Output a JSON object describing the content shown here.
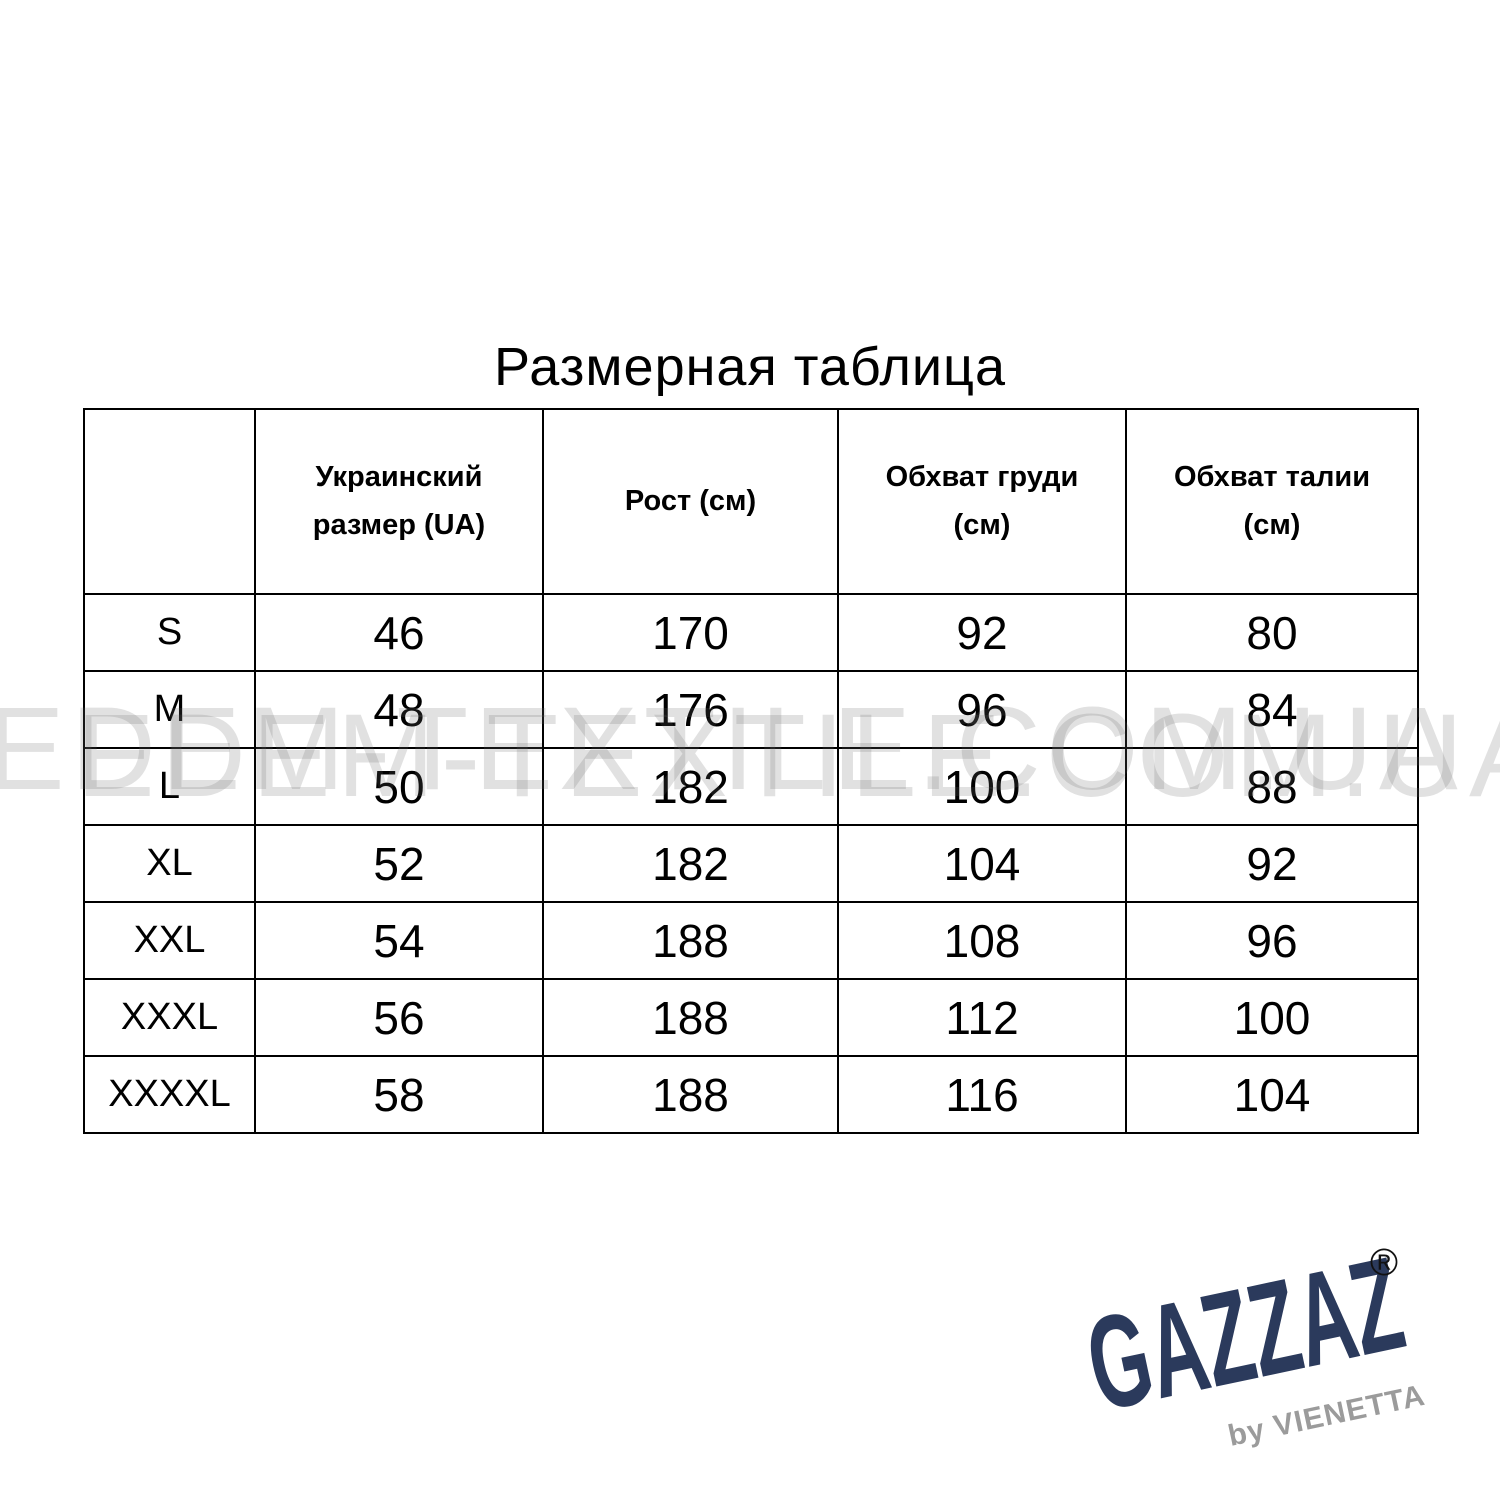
{
  "page": {
    "title": "Размерная таблица",
    "watermark": "EDEM-TEXTILE.COM.UA"
  },
  "table": {
    "columns": [
      "",
      "Украинский размер (UA)",
      "Рост (см)",
      "Обхват груди (см)",
      "Обхват талии (см)"
    ],
    "rows": [
      {
        "size": "S",
        "ua": "46",
        "height": "170",
        "chest": "92",
        "waist": "80"
      },
      {
        "size": "M",
        "ua": "48",
        "height": "176",
        "chest": "96",
        "waist": "84"
      },
      {
        "size": "L",
        "ua": "50",
        "height": "182",
        "chest": "100",
        "waist": "88"
      },
      {
        "size": "XL",
        "ua": "52",
        "height": "182",
        "chest": "104",
        "waist": "92"
      },
      {
        "size": "XXL",
        "ua": "54",
        "height": "188",
        "chest": "108",
        "waist": "96"
      },
      {
        "size": "XXXL",
        "ua": "56",
        "height": "188",
        "chest": "112",
        "waist": "100"
      },
      {
        "size": "XXXXL",
        "ua": "58",
        "height": "188",
        "chest": "116",
        "waist": "104"
      }
    ]
  },
  "logo": {
    "brand": "GAZZAZ",
    "byline": "by VIENETTA",
    "registered": "®",
    "brand_color": "#2b3a5c",
    "byline_color": "#9b9b9b"
  }
}
